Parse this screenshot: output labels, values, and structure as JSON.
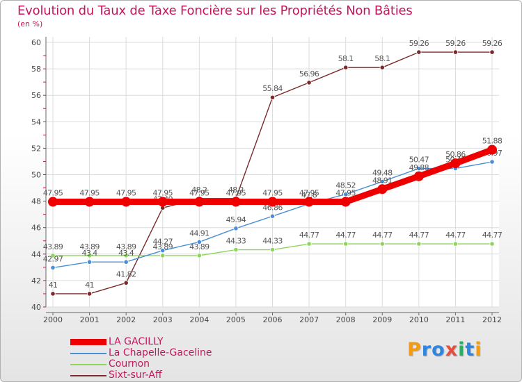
{
  "header": {
    "title": "Evolution du Taux de Taxe Foncière sur les Propriétés Non Bâties",
    "subtitle": "(en %)"
  },
  "logo": {
    "text": "Proxiti",
    "letters": [
      {
        "ch": "P",
        "color": "#f39c12"
      },
      {
        "ch": "r",
        "color": "#2e86de"
      },
      {
        "ch": "o",
        "color": "#2e86de"
      },
      {
        "ch": "x",
        "color": "#e74c3c"
      },
      {
        "ch": "i",
        "color": "#27ae60"
      },
      {
        "ch": "t",
        "color": "#2e86de"
      },
      {
        "ch": "i",
        "color": "#f39c12"
      }
    ]
  },
  "chart_data": {
    "type": "line",
    "title": "Evolution du Taux de Taxe Foncière sur les Propriétés Non Bâties",
    "ylabel": "(en %)",
    "xlabel": "",
    "x": [
      "2000",
      "2001",
      "2002",
      "2003",
      "2004",
      "2005",
      "2006",
      "2007",
      "2008",
      "2009",
      "2010",
      "2011",
      "2012"
    ],
    "ylim": [
      40,
      60
    ],
    "yticks": [
      40,
      42,
      44,
      46,
      48,
      50,
      52,
      54,
      56,
      58,
      60
    ],
    "grid": true,
    "legend_position": "bottom-left",
    "series": [
      {
        "name": "LA GACILLY",
        "color": "#ee0000",
        "emphasis": true,
        "values": [
          47.95,
          47.95,
          47.95,
          47.95,
          47.95,
          47.95,
          47.95,
          47.95,
          47.95,
          48.91,
          49.88,
          50.86,
          51.88
        ],
        "labels": [
          "47.95",
          "47.95",
          "47.95",
          "47.95",
          "47.95",
          "47.95",
          "47.95",
          "47.95",
          "47.95",
          "48.91",
          "49.88",
          "50.86",
          "51.88"
        ]
      },
      {
        "name": "La Chapelle-Gaceline",
        "color": "#4a8fd4",
        "values": [
          42.97,
          43.4,
          43.4,
          44.27,
          44.91,
          45.94,
          46.86,
          47.8,
          48.52,
          49.48,
          50.47,
          50.47,
          50.97
        ],
        "labels": [
          "42.97",
          "43.4",
          "43.4",
          "44.27",
          "44.91",
          "45.94",
          "46.86",
          "47.8",
          "48.52",
          "49.48",
          "50.47",
          "50.47",
          "50.97"
        ]
      },
      {
        "name": "Cournon",
        "color": "#8dd65a",
        "values": [
          43.89,
          43.89,
          43.89,
          43.89,
          43.89,
          44.33,
          44.33,
          44.77,
          44.77,
          44.77,
          44.77,
          44.77,
          44.77
        ],
        "labels": [
          "43.89",
          "43.89",
          "43.89",
          "43.89",
          "43.89",
          "44.33",
          "44.33",
          "44.77",
          "44.77",
          "44.77",
          "44.77",
          "44.77",
          "44.77"
        ]
      },
      {
        "name": "Sixt-sur-Aff",
        "color": "#7a2a2a",
        "values": [
          41,
          41,
          41.82,
          47.49,
          48.2,
          48.2,
          55.84,
          56.96,
          58.1,
          58.1,
          59.26,
          59.26,
          59.26
        ],
        "labels": [
          "41",
          "41",
          "41.82",
          "47.49",
          "48.2",
          "48.2",
          "55.84",
          "56.96",
          "58.1",
          "58.1",
          "59.26",
          "59.26",
          "59.26"
        ]
      }
    ]
  }
}
